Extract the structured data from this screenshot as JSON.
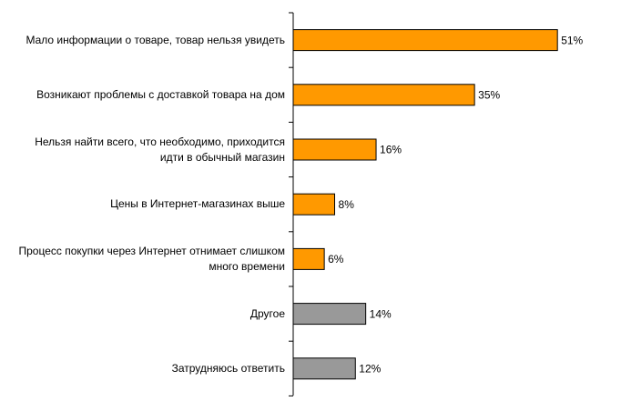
{
  "chart_data": {
    "type": "barh",
    "categories": [
      "Мало информации о товаре, товар нельзя увидеть",
      "Возникают проблемы с доставкой товара на дом",
      "Нельзя найти всего, что необходимо, приходится идти в обычный магазин",
      "Цены в Интернет-магазинах выше",
      "Процесс покупки через Интернет отнимает слишком много времени",
      "Другое",
      "Затрудняюсь ответить"
    ],
    "values": [
      51,
      35,
      16,
      8,
      6,
      14,
      12
    ],
    "value_labels": [
      "51%",
      "35%",
      "16%",
      "8%",
      "6%",
      "14%",
      "12%"
    ],
    "colors": [
      "#ff9900",
      "#ff9900",
      "#ff9900",
      "#ff9900",
      "#ff9900",
      "#999999",
      "#999999"
    ]
  }
}
